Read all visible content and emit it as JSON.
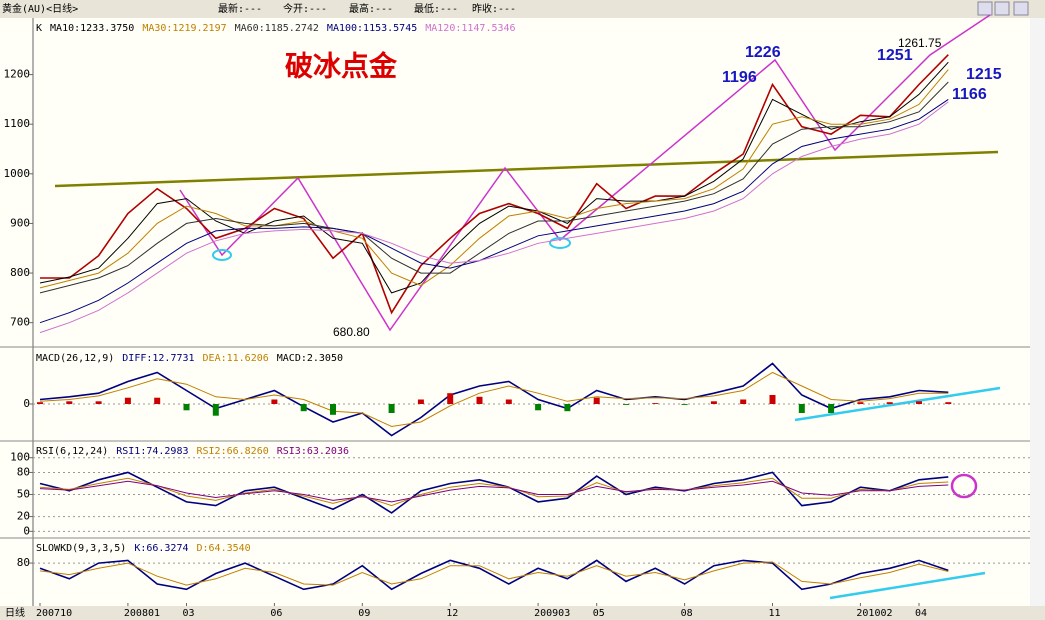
{
  "header": {
    "symbol": "黄金(AU)<日线>",
    "fields": [
      "最新:---",
      "今开:---",
      "最高:---",
      "最低:---",
      "昨收:---"
    ],
    "period": "日线"
  },
  "chart_data": [
    {
      "type": "line",
      "title": "K",
      "categories": [
        "200710",
        null,
        null,
        "200801",
        null,
        "03",
        null,
        null,
        "06",
        null,
        null,
        "09",
        null,
        null,
        "12",
        null,
        null,
        "200903",
        null,
        "05",
        null,
        null,
        "08",
        null,
        null,
        "11",
        null,
        null,
        "201002",
        null,
        "04",
        null
      ],
      "ylim": [
        655,
        1310
      ],
      "yticks": [
        700,
        800,
        900,
        1000,
        1100,
        1200
      ],
      "grid": false,
      "series": [
        {
          "name": "价格",
          "color": "#b00000",
          "values": [
            790,
            790,
            835,
            920,
            970,
            930,
            870,
            890,
            930,
            910,
            830,
            880,
            720,
            815,
            870,
            920,
            940,
            920,
            890,
            980,
            930,
            955,
            955,
            1000,
            1040,
            1180,
            1095,
            1080,
            1118,
            1115,
            1180,
            1240
          ]
        },
        {
          "name": "MA10:1233.3750",
          "color": "#000000",
          "values": [
            780,
            792,
            810,
            870,
            940,
            950,
            905,
            880,
            905,
            915,
            870,
            860,
            760,
            780,
            845,
            900,
            935,
            925,
            900,
            950,
            945,
            945,
            955,
            985,
            1030,
            1150,
            1120,
            1090,
            1105,
            1115,
            1160,
            1225
          ]
        },
        {
          "name": "MA30:1219.2197",
          "color": "#c08000",
          "values": [
            770,
            785,
            800,
            840,
            900,
            935,
            920,
            895,
            895,
            905,
            885,
            870,
            800,
            775,
            815,
            870,
            915,
            925,
            910,
            930,
            940,
            945,
            950,
            970,
            1010,
            1100,
            1115,
            1100,
            1100,
            1110,
            1140,
            1210
          ]
        },
        {
          "name": "MA60:1185.2742",
          "color": "#303030",
          "values": [
            760,
            775,
            790,
            815,
            860,
            900,
            910,
            900,
            895,
            900,
            890,
            880,
            830,
            800,
            800,
            840,
            880,
            905,
            905,
            915,
            925,
            935,
            945,
            960,
            990,
            1060,
            1090,
            1095,
            1095,
            1105,
            1125,
            1185
          ]
        },
        {
          "name": "MA100:1153.5745",
          "color": "#000080",
          "values": [
            700,
            720,
            745,
            780,
            820,
            860,
            885,
            890,
            890,
            893,
            890,
            880,
            850,
            820,
            810,
            825,
            850,
            875,
            885,
            895,
            905,
            915,
            925,
            940,
            965,
            1020,
            1055,
            1070,
            1080,
            1090,
            1110,
            1150
          ]
        },
        {
          "name": "MA120:1147.5346",
          "color": "#d070d0",
          "values": [
            680,
            700,
            725,
            760,
            800,
            840,
            865,
            880,
            885,
            888,
            885,
            880,
            860,
            835,
            820,
            825,
            840,
            860,
            870,
            880,
            890,
            900,
            910,
            925,
            950,
            1000,
            1035,
            1055,
            1070,
            1080,
            1100,
            1145
          ]
        }
      ],
      "annotations": [
        "破冰点金",
        "680.80",
        "1226",
        "1196",
        "1251",
        "1261.75",
        "1215",
        "1166"
      ]
    },
    {
      "type": "line",
      "title": "MACD(26,12,9)",
      "ylim": [
        -40,
        60
      ],
      "yticks": [
        0
      ],
      "grid": true,
      "series": [
        {
          "name": "DIFF:12.7731",
          "color": "#000080",
          "values": [
            5,
            8,
            12,
            25,
            35,
            15,
            -5,
            5,
            15,
            -3,
            -20,
            -10,
            -35,
            -15,
            10,
            20,
            25,
            5,
            -5,
            15,
            5,
            8,
            5,
            12,
            20,
            45,
            10,
            -5,
            5,
            8,
            15,
            13
          ]
        },
        {
          "name": "DEA:11.6206",
          "color": "#c08000",
          "values": [
            3,
            5,
            9,
            18,
            28,
            22,
            8,
            5,
            10,
            5,
            -8,
            -10,
            -25,
            -20,
            -2,
            12,
            20,
            12,
            3,
            8,
            6,
            7,
            6,
            9,
            15,
            35,
            20,
            5,
            3,
            6,
            12,
            12
          ]
        },
        {
          "name": "MACD:2.3050",
          "color": "#000000",
          "style": "bar",
          "values": [
            2,
            3,
            3,
            7,
            7,
            -7,
            -13,
            0,
            5,
            -8,
            -12,
            0,
            -10,
            5,
            12,
            8,
            5,
            -7,
            -8,
            7,
            -1,
            1,
            -1,
            3,
            5,
            10,
            -10,
            -10,
            2,
            2,
            3,
            2
          ]
        }
      ]
    },
    {
      "type": "line",
      "title": "RSI(6,12,24)",
      "ylim": [
        -5,
        120
      ],
      "yticks": [
        0,
        20,
        50,
        80,
        100
      ],
      "grid": true,
      "series": [
        {
          "name": "RSI1:74.2983",
          "color": "#000080",
          "values": [
            65,
            55,
            70,
            80,
            60,
            40,
            35,
            55,
            60,
            45,
            30,
            50,
            25,
            55,
            65,
            70,
            60,
            40,
            45,
            75,
            50,
            60,
            55,
            65,
            70,
            80,
            35,
            40,
            60,
            55,
            70,
            74
          ]
        },
        {
          "name": "RSI2:66.8260",
          "color": "#c08000",
          "values": [
            60,
            57,
            65,
            72,
            62,
            48,
            42,
            52,
            57,
            48,
            38,
            48,
            35,
            50,
            60,
            65,
            60,
            47,
            48,
            66,
            53,
            58,
            56,
            62,
            66,
            72,
            45,
            45,
            57,
            55,
            65,
            67
          ]
        },
        {
          "name": "RSI3:63.2036",
          "color": "#800080",
          "values": [
            58,
            56,
            62,
            68,
            62,
            52,
            46,
            51,
            55,
            50,
            42,
            47,
            40,
            48,
            56,
            61,
            59,
            50,
            50,
            61,
            54,
            57,
            56,
            60,
            63,
            68,
            52,
            49,
            55,
            55,
            61,
            63
          ]
        }
      ]
    },
    {
      "type": "line",
      "title": "SLOWKD(9,3,3,5)",
      "ylim": [
        0,
        124
      ],
      "yticks": [
        80
      ],
      "grid": true,
      "series": [
        {
          "name": "K:66.3274",
          "color": "#000080",
          "values": [
            70,
            50,
            80,
            85,
            40,
            30,
            60,
            80,
            55,
            30,
            40,
            75,
            30,
            60,
            85,
            70,
            40,
            70,
            50,
            85,
            45,
            70,
            40,
            75,
            85,
            80,
            30,
            40,
            60,
            70,
            85,
            66
          ]
        },
        {
          "name": "D:64.3540",
          "color": "#c08000",
          "values": [
            65,
            58,
            70,
            80,
            55,
            38,
            50,
            70,
            62,
            40,
            38,
            62,
            40,
            50,
            75,
            75,
            50,
            62,
            55,
            75,
            55,
            62,
            48,
            65,
            80,
            82,
            45,
            40,
            52,
            62,
            78,
            64
          ]
        }
      ]
    }
  ]
}
